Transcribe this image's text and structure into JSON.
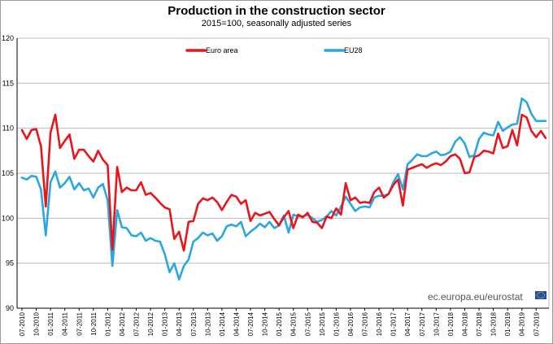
{
  "chart_data": {
    "type": "line",
    "title": "Production in the construction sector",
    "subtitle": "2015=100, seasonally adjusted series",
    "xlabel": "",
    "ylabel": "",
    "ylim": [
      90,
      120
    ],
    "yticks": [
      90,
      95,
      100,
      105,
      110,
      115,
      120
    ],
    "grid": true,
    "legend_position": "top",
    "source": "ec.europa.eu/eurostat",
    "x_tick_labels": [
      "07-2010",
      "10-2010",
      "01-2011",
      "04-2011",
      "07-2011",
      "10-2011",
      "01-2012",
      "04-2012",
      "07-2012",
      "10-2012",
      "01-2013",
      "04-2013",
      "07-2013",
      "10-2013",
      "01-2014",
      "04-2014",
      "07-2014",
      "10-2014",
      "01-2015",
      "04-2015",
      "07-2015",
      "10-2015",
      "01-2016",
      "04-2016",
      "07-2016",
      "10-2016",
      "01-2017",
      "04-2017",
      "07-2017",
      "10-2017",
      "01-2018",
      "04-2018",
      "07-2018",
      "10-2018",
      "01-2019",
      "04-2019",
      "07-2019"
    ],
    "series": [
      {
        "name": "Euro area",
        "color": "#e8151b",
        "values": [
          109.8,
          108.8,
          109.8,
          109.9,
          108.0,
          101.3,
          109.5,
          111.5,
          107.8,
          108.6,
          109.3,
          106.6,
          107.6,
          107.6,
          106.9,
          106.3,
          107.5,
          106.5,
          105.9,
          96.5,
          105.7,
          102.9,
          103.4,
          103.1,
          103.1,
          104.0,
          102.6,
          102.8,
          102.3,
          101.7,
          101.2,
          101.0,
          97.7,
          98.5,
          96.4,
          99.6,
          99.7,
          101.6,
          102.2,
          102.0,
          102.3,
          101.8,
          100.9,
          101.8,
          102.6,
          102.4,
          101.6,
          102.0,
          99.7,
          100.6,
          100.3,
          100.5,
          100.7,
          99.9,
          99.2,
          100.1,
          100.8,
          98.9,
          100.4,
          100.1,
          100.6,
          99.6,
          99.5,
          98.9,
          100.2,
          100.0,
          101.1,
          100.4,
          103.9,
          102.0,
          102.3,
          101.7,
          101.8,
          101.7,
          102.9,
          103.4,
          102.3,
          102.7,
          103.7,
          104.3,
          101.4,
          105.4,
          105.6,
          105.8,
          106.0,
          105.6,
          105.9,
          106.1,
          105.9,
          106.3,
          106.9,
          107.1,
          106.6,
          105.0,
          105.1,
          106.8,
          107.0,
          107.5,
          107.4,
          107.2,
          109.4,
          107.8,
          108.0,
          109.8,
          108.1,
          111.5,
          111.2,
          109.7,
          109.0,
          109.7,
          108.9
        ]
      },
      {
        "name": "EU28",
        "color": "#2aa7e0",
        "values": [
          104.5,
          104.3,
          104.7,
          104.6,
          103.2,
          98.1,
          104.0,
          105.2,
          103.4,
          103.9,
          104.6,
          103.2,
          103.9,
          103.1,
          103.3,
          102.3,
          103.4,
          103.8,
          102.0,
          94.7,
          100.9,
          99.0,
          98.9,
          98.1,
          98.0,
          98.4,
          97.5,
          97.8,
          97.5,
          97.4,
          96.0,
          94.0,
          95.0,
          93.2,
          94.7,
          95.4,
          97.4,
          97.8,
          98.4,
          98.1,
          98.3,
          97.5,
          98.0,
          99.1,
          99.3,
          99.1,
          99.6,
          98.0,
          98.5,
          98.9,
          99.4,
          99.0,
          99.6,
          98.9,
          99.2,
          100.3,
          98.4,
          100.4,
          100.2,
          100.2,
          100.4,
          100.0,
          99.6,
          99.8,
          100.2,
          100.8,
          100.3,
          101.3,
          102.4,
          101.6,
          100.8,
          101.2,
          101.3,
          101.2,
          102.3,
          102.5,
          102.5,
          102.7,
          104.0,
          104.9,
          103.2,
          106.0,
          106.5,
          107.1,
          106.9,
          106.9,
          107.2,
          107.4,
          107.0,
          107.1,
          107.4,
          108.5,
          109.0,
          108.3,
          106.8,
          107.0,
          108.8,
          109.5,
          109.3,
          109.2,
          110.7,
          109.7,
          110.1,
          110.4,
          110.5,
          113.3,
          112.9,
          111.6,
          110.8,
          110.8,
          110.8
        ]
      }
    ]
  }
}
